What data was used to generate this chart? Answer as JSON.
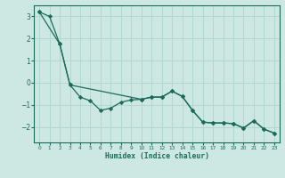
{
  "xlabel": "Humidex (Indice chaleur)",
  "background_color": "#cde8e2",
  "grid_color": "#b0d8cf",
  "line_color": "#1a6b5a",
  "ylim": [
    -2.7,
    3.5
  ],
  "xlim": [
    -0.5,
    23.5
  ],
  "yticks": [
    -2,
    -1,
    0,
    1,
    2,
    3
  ],
  "xticks": [
    0,
    1,
    2,
    3,
    4,
    5,
    6,
    7,
    8,
    9,
    10,
    11,
    12,
    13,
    14,
    15,
    16,
    17,
    18,
    19,
    20,
    21,
    22,
    23
  ],
  "line1_x": [
    0,
    2,
    3,
    4,
    5,
    6,
    7,
    8,
    9,
    10,
    11,
    12,
    13,
    14,
    15,
    16,
    17,
    18,
    19,
    20,
    21,
    22,
    23
  ],
  "line1_y": [
    3.2,
    1.75,
    -0.1,
    -0.65,
    -0.82,
    -1.25,
    -1.15,
    -0.88,
    -0.78,
    -0.75,
    -0.65,
    -0.65,
    -0.38,
    -0.62,
    -1.25,
    -1.78,
    -1.82,
    -1.82,
    -1.85,
    -2.05,
    -1.72,
    -2.1,
    -2.28
  ],
  "line2_x": [
    0,
    1,
    2,
    3,
    10,
    11,
    12,
    13,
    14,
    15,
    16,
    17,
    18,
    19,
    20,
    21,
    22,
    23
  ],
  "line2_y": [
    3.2,
    3.0,
    1.75,
    -0.1,
    -0.75,
    -0.65,
    -0.65,
    -0.38,
    -0.62,
    -1.25,
    -1.78,
    -1.82,
    -1.82,
    -1.85,
    -2.05,
    -1.72,
    -2.1,
    -2.28
  ]
}
